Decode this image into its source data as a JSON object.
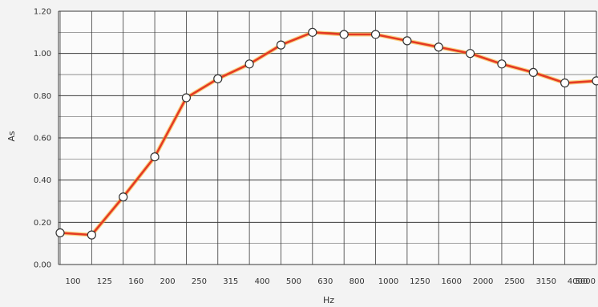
{
  "chart_data": {
    "type": "line",
    "title": "",
    "xlabel": "Hz",
    "ylabel": "As",
    "categories": [
      "100",
      "125",
      "160",
      "200",
      "250",
      "315",
      "400",
      "500",
      "630",
      "800",
      "1000",
      "1250",
      "1600",
      "2000",
      "2500",
      "3150",
      "4000",
      "5000"
    ],
    "series": [
      {
        "values": [
          0.15,
          0.14,
          0.32,
          0.51,
          0.79,
          0.88,
          0.95,
          1.04,
          1.1,
          1.09,
          1.09,
          1.06,
          1.03,
          1.0,
          0.95,
          0.91,
          0.86,
          0.87
        ]
      }
    ],
    "yticks": [
      "0.00",
      "0.20",
      "0.40",
      "0.60",
      "0.80",
      "1.00",
      "1.20"
    ],
    "ylim": [
      0,
      1.2
    ],
    "grid": true,
    "colors": {
      "line": "#e53a24",
      "line_glow": "#f7b01e",
      "marker_fill": "#ffffff",
      "marker_stroke": "#333333",
      "grid": "#3a3a3a",
      "plot_bg": "#fbfbfb"
    }
  }
}
